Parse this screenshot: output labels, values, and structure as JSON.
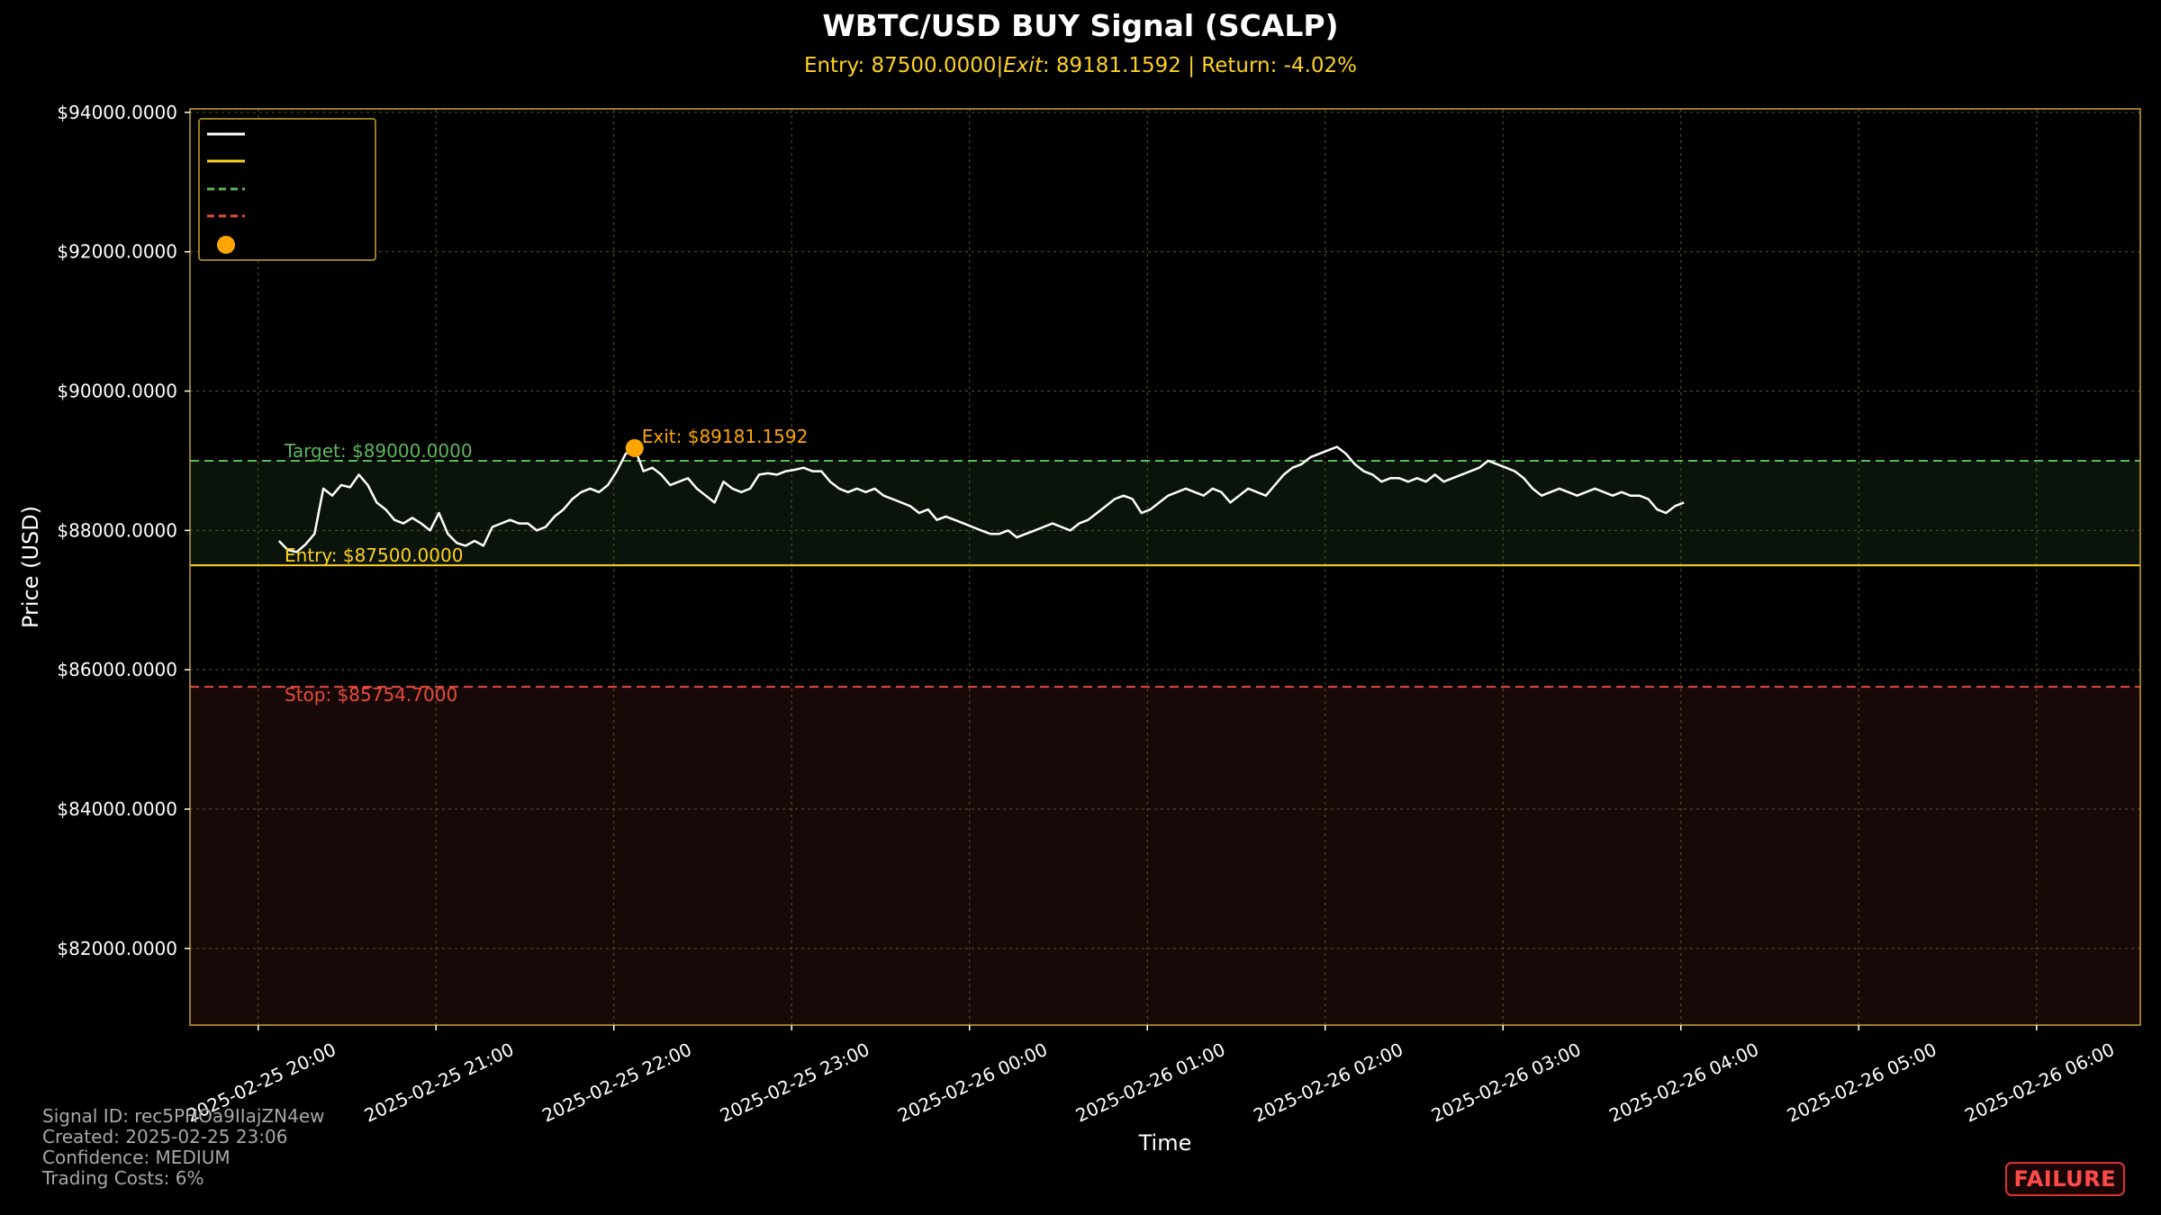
{
  "chart_data": {
    "type": "line",
    "title": "WBTC/USD BUY Signal (SCALP)",
    "subtitle": "Entry: 87500.0000|$Exit: $89181.1592 | Return: -4.02%",
    "subtitle_parts": {
      "pre": "Entry: 87500.0000|",
      "italic": "Exit",
      "post": ": 89181.1592 | Return: -4.02%"
    },
    "xlabel": "Time",
    "ylabel": "Price (USD)",
    "ylim": [
      80900,
      94050
    ],
    "xlim": [
      "2025-02-25 19:37",
      "2025-02-26 06:35"
    ],
    "grid": true,
    "legend_placement": "top-left",
    "y_ticks": [
      {
        "value": 82000,
        "label": "$82000.0000"
      },
      {
        "value": 84000,
        "label": "$84000.0000"
      },
      {
        "value": 86000,
        "label": "$86000.0000"
      },
      {
        "value": 88000,
        "label": "$88000.0000"
      },
      {
        "value": 90000,
        "label": "$90000.0000"
      },
      {
        "value": 92000,
        "label": "$92000.0000"
      },
      {
        "value": 94000,
        "label": "$94000.0000"
      }
    ],
    "x_ticks": [
      {
        "value": "2025-02-25 20:00",
        "label": "2025-02-25 20:00"
      },
      {
        "value": "2025-02-25 21:00",
        "label": "2025-02-25 21:00"
      },
      {
        "value": "2025-02-25 22:00",
        "label": "2025-02-25 22:00"
      },
      {
        "value": "2025-02-25 23:00",
        "label": "2025-02-25 23:00"
      },
      {
        "value": "2025-02-26 00:00",
        "label": "2025-02-26 00:00"
      },
      {
        "value": "2025-02-26 01:00",
        "label": "2025-02-26 01:00"
      },
      {
        "value": "2025-02-26 02:00",
        "label": "2025-02-26 02:00"
      },
      {
        "value": "2025-02-26 03:00",
        "label": "2025-02-26 03:00"
      },
      {
        "value": "2025-02-26 04:00",
        "label": "2025-02-26 04:00"
      },
      {
        "value": "2025-02-26 05:00",
        "label": "2025-02-26 05:00"
      },
      {
        "value": "2025-02-26 06:00",
        "label": "2025-02-26 06:00"
      }
    ],
    "levels": {
      "entry": {
        "value": 87500,
        "label": "Entry: $87500.0000"
      },
      "target": {
        "value": 89000,
        "label": "Target: $89000.0000"
      },
      "stop": {
        "value": 85754.7,
        "label": "Stop: $85754.7000"
      }
    },
    "exit_point": {
      "x": "2025-02-25 22:07",
      "y": 89181.1592,
      "label": "Exit: $89181.1592"
    },
    "series": [
      {
        "points": [
          [
            "2025-02-25 20:07",
            87850
          ],
          [
            "2025-02-25 20:10",
            87720
          ],
          [
            "2025-02-25 20:13",
            87690
          ],
          [
            "2025-02-25 20:16",
            87800
          ],
          [
            "2025-02-25 20:19",
            87950
          ],
          [
            "2025-02-25 20:22",
            88600
          ],
          [
            "2025-02-25 20:25",
            88500
          ],
          [
            "2025-02-25 20:28",
            88650
          ],
          [
            "2025-02-25 20:31",
            88620
          ],
          [
            "2025-02-25 20:34",
            88800
          ],
          [
            "2025-02-25 20:37",
            88650
          ],
          [
            "2025-02-25 20:40",
            88400
          ],
          [
            "2025-02-25 20:43",
            88300
          ],
          [
            "2025-02-25 20:46",
            88150
          ],
          [
            "2025-02-25 20:49",
            88100
          ],
          [
            "2025-02-25 20:52",
            88180
          ],
          [
            "2025-02-25 20:55",
            88100
          ],
          [
            "2025-02-25 20:58",
            88000
          ],
          [
            "2025-02-25 21:01",
            88250
          ],
          [
            "2025-02-25 21:04",
            87950
          ],
          [
            "2025-02-25 21:07",
            87820
          ],
          [
            "2025-02-25 21:10",
            87780
          ],
          [
            "2025-02-25 21:13",
            87850
          ],
          [
            "2025-02-25 21:16",
            87780
          ],
          [
            "2025-02-25 21:19",
            88050
          ],
          [
            "2025-02-25 21:22",
            88100
          ],
          [
            "2025-02-25 21:25",
            88150
          ],
          [
            "2025-02-25 21:28",
            88100
          ],
          [
            "2025-02-25 21:31",
            88100
          ],
          [
            "2025-02-25 21:34",
            88000
          ],
          [
            "2025-02-25 21:37",
            88050
          ],
          [
            "2025-02-25 21:40",
            88200
          ],
          [
            "2025-02-25 21:43",
            88300
          ],
          [
            "2025-02-25 21:46",
            88450
          ],
          [
            "2025-02-25 21:49",
            88550
          ],
          [
            "2025-02-25 21:52",
            88600
          ],
          [
            "2025-02-25 21:55",
            88550
          ],
          [
            "2025-02-25 21:58",
            88650
          ],
          [
            "2025-02-25 22:01",
            88850
          ],
          [
            "2025-02-25 22:04",
            89100
          ],
          [
            "2025-02-25 22:07",
            89181
          ],
          [
            "2025-02-25 22:10",
            88850
          ],
          [
            "2025-02-25 22:13",
            88900
          ],
          [
            "2025-02-25 22:16",
            88800
          ],
          [
            "2025-02-25 22:19",
            88650
          ],
          [
            "2025-02-25 22:22",
            88700
          ],
          [
            "2025-02-25 22:25",
            88750
          ],
          [
            "2025-02-25 22:28",
            88600
          ],
          [
            "2025-02-25 22:31",
            88500
          ],
          [
            "2025-02-25 22:34",
            88400
          ],
          [
            "2025-02-25 22:37",
            88700
          ],
          [
            "2025-02-25 22:40",
            88600
          ],
          [
            "2025-02-25 22:43",
            88550
          ],
          [
            "2025-02-25 22:46",
            88600
          ],
          [
            "2025-02-25 22:49",
            88800
          ],
          [
            "2025-02-25 22:52",
            88820
          ],
          [
            "2025-02-25 22:55",
            88800
          ],
          [
            "2025-02-25 22:58",
            88850
          ],
          [
            "2025-02-25 23:01",
            88870
          ],
          [
            "2025-02-25 23:04",
            88900
          ],
          [
            "2025-02-25 23:07",
            88850
          ],
          [
            "2025-02-25 23:10",
            88850
          ],
          [
            "2025-02-25 23:13",
            88700
          ],
          [
            "2025-02-25 23:16",
            88600
          ],
          [
            "2025-02-25 23:19",
            88550
          ],
          [
            "2025-02-25 23:22",
            88600
          ],
          [
            "2025-02-25 23:25",
            88550
          ],
          [
            "2025-02-25 23:28",
            88600
          ],
          [
            "2025-02-25 23:31",
            88500
          ],
          [
            "2025-02-25 23:34",
            88450
          ],
          [
            "2025-02-25 23:37",
            88400
          ],
          [
            "2025-02-25 23:40",
            88350
          ],
          [
            "2025-02-25 23:43",
            88250
          ],
          [
            "2025-02-25 23:46",
            88300
          ],
          [
            "2025-02-25 23:49",
            88150
          ],
          [
            "2025-02-25 23:52",
            88200
          ],
          [
            "2025-02-25 23:55",
            88150
          ],
          [
            "2025-02-25 23:58",
            88100
          ],
          [
            "2025-02-26 00:01",
            88050
          ],
          [
            "2025-02-26 00:04",
            88000
          ],
          [
            "2025-02-26 00:07",
            87950
          ],
          [
            "2025-02-26 00:10",
            87950
          ],
          [
            "2025-02-26 00:13",
            88000
          ],
          [
            "2025-02-26 00:16",
            87900
          ],
          [
            "2025-02-26 00:19",
            87950
          ],
          [
            "2025-02-26 00:22",
            88000
          ],
          [
            "2025-02-26 00:25",
            88050
          ],
          [
            "2025-02-26 00:28",
            88100
          ],
          [
            "2025-02-26 00:31",
            88050
          ],
          [
            "2025-02-26 00:34",
            88000
          ],
          [
            "2025-02-26 00:37",
            88100
          ],
          [
            "2025-02-26 00:40",
            88150
          ],
          [
            "2025-02-26 00:43",
            88250
          ],
          [
            "2025-02-26 00:46",
            88350
          ],
          [
            "2025-02-26 00:49",
            88450
          ],
          [
            "2025-02-26 00:52",
            88500
          ],
          [
            "2025-02-26 00:55",
            88450
          ],
          [
            "2025-02-26 00:58",
            88250
          ],
          [
            "2025-02-26 01:01",
            88300
          ],
          [
            "2025-02-26 01:04",
            88400
          ],
          [
            "2025-02-26 01:07",
            88500
          ],
          [
            "2025-02-26 01:10",
            88550
          ],
          [
            "2025-02-26 01:13",
            88600
          ],
          [
            "2025-02-26 01:16",
            88550
          ],
          [
            "2025-02-26 01:19",
            88500
          ],
          [
            "2025-02-26 01:22",
            88600
          ],
          [
            "2025-02-26 01:25",
            88550
          ],
          [
            "2025-02-26 01:28",
            88400
          ],
          [
            "2025-02-26 01:31",
            88500
          ],
          [
            "2025-02-26 01:34",
            88600
          ],
          [
            "2025-02-26 01:37",
            88550
          ],
          [
            "2025-02-26 01:40",
            88500
          ],
          [
            "2025-02-26 01:43",
            88650
          ],
          [
            "2025-02-26 01:46",
            88800
          ],
          [
            "2025-02-26 01:49",
            88900
          ],
          [
            "2025-02-26 01:52",
            88950
          ],
          [
            "2025-02-26 01:55",
            89050
          ],
          [
            "2025-02-26 01:58",
            89100
          ],
          [
            "2025-02-26 02:01",
            89150
          ],
          [
            "2025-02-26 02:04",
            89200
          ],
          [
            "2025-02-26 02:07",
            89100
          ],
          [
            "2025-02-26 02:10",
            88950
          ],
          [
            "2025-02-26 02:13",
            88850
          ],
          [
            "2025-02-26 02:16",
            88800
          ],
          [
            "2025-02-26 02:19",
            88700
          ],
          [
            "2025-02-26 02:22",
            88750
          ],
          [
            "2025-02-26 02:25",
            88750
          ],
          [
            "2025-02-26 02:28",
            88700
          ],
          [
            "2025-02-26 02:31",
            88750
          ],
          [
            "2025-02-26 02:34",
            88700
          ],
          [
            "2025-02-26 02:37",
            88800
          ],
          [
            "2025-02-26 02:40",
            88700
          ],
          [
            "2025-02-26 02:43",
            88750
          ],
          [
            "2025-02-26 02:46",
            88800
          ],
          [
            "2025-02-26 02:49",
            88850
          ],
          [
            "2025-02-26 02:52",
            88900
          ],
          [
            "2025-02-26 02:55",
            89000
          ],
          [
            "2025-02-26 02:58",
            88950
          ],
          [
            "2025-02-26 03:01",
            88900
          ],
          [
            "2025-02-26 03:04",
            88850
          ],
          [
            "2025-02-26 03:07",
            88750
          ],
          [
            "2025-02-26 03:10",
            88600
          ],
          [
            "2025-02-26 03:13",
            88500
          ],
          [
            "2025-02-26 03:16",
            88550
          ],
          [
            "2025-02-26 03:19",
            88600
          ],
          [
            "2025-02-26 03:22",
            88550
          ],
          [
            "2025-02-26 03:25",
            88500
          ],
          [
            "2025-02-26 03:28",
            88550
          ],
          [
            "2025-02-26 03:31",
            88600
          ],
          [
            "2025-02-26 03:34",
            88550
          ],
          [
            "2025-02-26 03:37",
            88500
          ],
          [
            "2025-02-26 03:40",
            88550
          ],
          [
            "2025-02-26 03:43",
            88500
          ],
          [
            "2025-02-26 03:46",
            88500
          ],
          [
            "2025-02-26 03:49",
            88450
          ],
          [
            "2025-02-26 03:52",
            88300
          ],
          [
            "2025-02-26 03:55",
            88250
          ],
          [
            "2025-02-26 03:58",
            88350
          ],
          [
            "2025-02-26 04:01",
            88400
          ]
        ]
      }
    ]
  },
  "footer": {
    "signal_id": "Signal ID: rec5PHOa9IIajZN4ew",
    "created": "Created: 2025-02-25 23:06",
    "confidence": "Confidence: MEDIUM",
    "costs": "Trading Costs: 6%"
  },
  "badge": "FAILURE",
  "colors": {
    "background": "#000000",
    "axes_edge": "#c9a227",
    "grid": "#5a5a22",
    "price_line": "#ffffff",
    "entry": "#ffd21f",
    "target": "#5cb85c",
    "stop": "#e74c3c",
    "exit_marker": "#ffa500",
    "profit_zone": "#0a140a",
    "loss_zone": "#180808",
    "badge": "#ff4a4a"
  }
}
